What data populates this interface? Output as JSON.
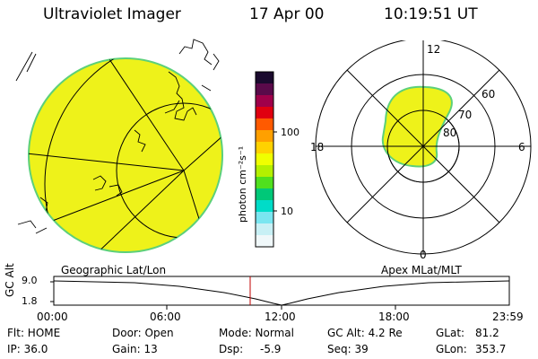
{
  "header": {
    "instrument": "Ultraviolet Imager",
    "date": "17 Apr 00",
    "time": "10:19:51 UT"
  },
  "colorbar": {
    "label": "photon cm⁻²s⁻¹",
    "ticks": [
      "100",
      "10"
    ],
    "colors": [
      "#1a0a2e",
      "#5a0a4a",
      "#a0004a",
      "#e00010",
      "#ff5a00",
      "#ffa000",
      "#ffd200",
      "#f0ff00",
      "#b4f000",
      "#50e01e",
      "#00c878",
      "#00dcc8",
      "#7ae6f0",
      "#c8f0f5",
      "#f0f8fa"
    ]
  },
  "polar": {
    "hour_labels": [
      "12",
      "18",
      "6",
      "0"
    ],
    "lat_labels": [
      "60",
      "70",
      "80"
    ],
    "fill": "#eef21a",
    "edge": "#5cd07a"
  },
  "geo": {
    "fill": "#eef21a",
    "edge": "#5cd07a"
  },
  "panel_labels": {
    "left": "Geographic Lat/Lon",
    "right": "Apex MLat/MLT"
  },
  "timeline": {
    "axis_label": "GC Alt",
    "y_ticks": [
      "9.0",
      "1.8"
    ],
    "x_ticks": [
      "00:00",
      "06:00",
      "12:00",
      "18:00",
      "23:59"
    ],
    "current_marker": "10:19:51",
    "marker_color": "#c00000"
  },
  "status": {
    "flt": "Flt: HOME",
    "ip": "IP: 36.0",
    "door": "Door: Open",
    "gain": "Gain: 13",
    "mode": "Mode: Normal",
    "dsp": "Dsp:",
    "dsp_value": "-5.9",
    "gcalt": "GC Alt: 4.2 Re",
    "seq": "Seq: 39",
    "glat": "GLat:",
    "glat_value": "81.2",
    "glon": "GLon:",
    "glon_value": "353.7"
  }
}
